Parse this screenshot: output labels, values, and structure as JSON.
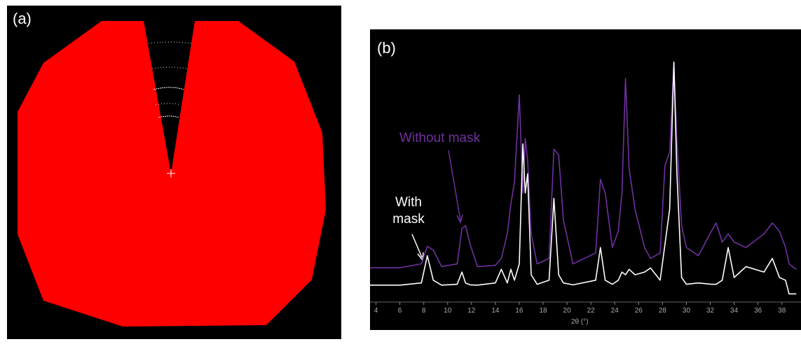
{
  "panel_a": {
    "label": "(a)"
  },
  "chart_data": {
    "type": "line",
    "panel_label": "(b)",
    "x_label": "2θ (°)",
    "x": [
      3.5,
      6,
      7.8,
      8.3,
      8.8,
      9.5,
      10.8,
      11.2,
      11.5,
      11.9,
      12.5,
      14,
      14.5,
      15,
      15.3,
      15.6,
      16.0,
      16.3,
      16.5,
      16.7,
      17.0,
      17.5,
      18.5,
      18.9,
      19.3,
      19.7,
      20.5,
      22.4,
      22.8,
      23.2,
      23.8,
      24.3,
      24.6,
      24.9,
      25.2,
      25.7,
      26.5,
      27,
      27.8,
      28.2,
      28.6,
      28.95,
      29.2,
      29.6,
      30,
      31,
      32.1,
      32.5,
      33,
      33.5,
      34,
      35,
      36.5,
      37.2,
      37.8,
      38.3,
      38.6,
      39.2
    ],
    "series": [
      {
        "name": "Without mask",
        "color": "#7030a0",
        "values": [
          12.6,
          12.6,
          14,
          20.5,
          19,
          13,
          14,
          27,
          28,
          21,
          13,
          13.5,
          16,
          25,
          36,
          44,
          76,
          40,
          60,
          52,
          25,
          14,
          16,
          56,
          54,
          30,
          14,
          18,
          45,
          40,
          20,
          26,
          40,
          82,
          49,
          34,
          20,
          16,
          18,
          50,
          55,
          88,
          60,
          28,
          20,
          17,
          26,
          29,
          22,
          25,
          22,
          20,
          25,
          29,
          26,
          20,
          14,
          12
        ]
      },
      {
        "name": "With mask",
        "color": "#ffffff",
        "values": [
          6.2,
          6.2,
          7,
          17,
          8,
          6.2,
          6.5,
          11,
          7,
          6.3,
          6.2,
          7,
          12,
          7,
          12,
          8,
          14,
          58,
          40,
          47,
          10,
          6.5,
          8,
          38,
          10,
          7,
          6.3,
          8,
          20,
          8,
          6.5,
          8,
          11,
          10,
          12,
          10,
          11,
          12.5,
          8,
          21,
          34,
          88,
          48,
          9,
          6.5,
          7,
          6.5,
          6.5,
          8,
          20,
          9,
          13,
          11,
          16,
          9,
          8,
          3,
          3
        ]
      }
    ],
    "xlim": [
      3.5,
      39.6
    ],
    "xticks": [
      4,
      6,
      8,
      10,
      12,
      14,
      16,
      18,
      20,
      22,
      24,
      26,
      28,
      30,
      32,
      34,
      36,
      38
    ],
    "ylim": [
      0,
      100
    ]
  }
}
